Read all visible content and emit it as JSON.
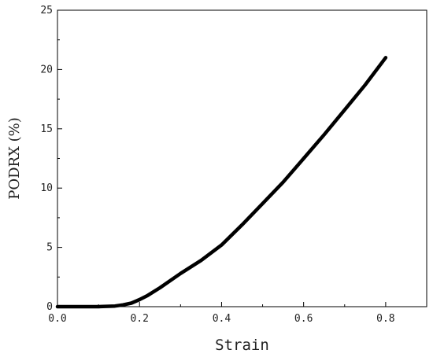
{
  "chart_data": {
    "type": "line",
    "xlabel": "Strain",
    "ylabel": "PODRX (%)",
    "xlim": [
      0.0,
      0.9
    ],
    "ylim": [
      0,
      25
    ],
    "x_ticks": [
      "0.0",
      "0.2",
      "0.4",
      "0.6",
      "0.8"
    ],
    "x_tick_values": [
      0.0,
      0.2,
      0.4,
      0.6,
      0.8
    ],
    "y_ticks": [
      "0",
      "5",
      "10",
      "15",
      "20",
      "25"
    ],
    "y_tick_values": [
      0,
      5,
      10,
      15,
      20,
      25
    ],
    "grid": false,
    "series": [
      {
        "x": [
          0.0,
          0.05,
          0.1,
          0.14,
          0.16,
          0.18,
          0.2,
          0.22,
          0.25,
          0.3,
          0.35,
          0.4,
          0.45,
          0.5,
          0.55,
          0.6,
          0.65,
          0.7,
          0.75,
          0.8
        ],
        "y": [
          0.0,
          0.0,
          0.0,
          0.05,
          0.15,
          0.3,
          0.6,
          0.95,
          1.6,
          2.8,
          3.9,
          5.2,
          6.9,
          8.7,
          10.5,
          12.5,
          14.5,
          16.6,
          18.7,
          21.0
        ],
        "color": "#000000"
      }
    ]
  }
}
